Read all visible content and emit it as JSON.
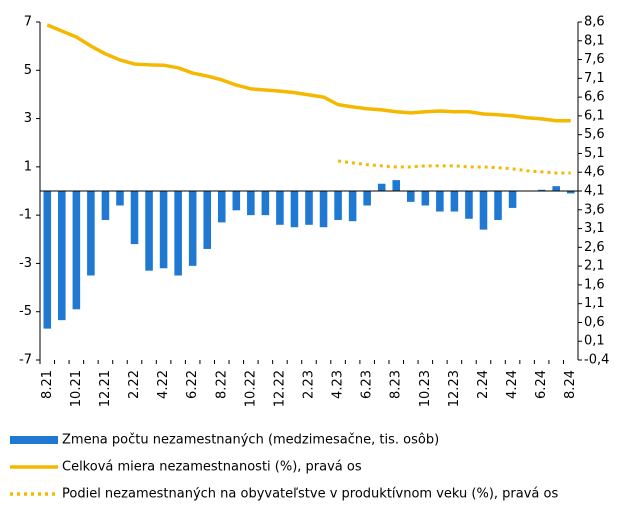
{
  "chart_data": {
    "type": "bar-line",
    "categories": [
      "8.21",
      null,
      "10.21",
      null,
      "12.21",
      null,
      "2.22",
      null,
      "4.22",
      null,
      "6.22",
      null,
      "8.22",
      null,
      "10.22",
      null,
      "12.22",
      null,
      "2.23",
      null,
      "4.23",
      null,
      "6.23",
      null,
      "8.23",
      null,
      "10.23",
      null,
      "12.23",
      null,
      "2.24",
      null,
      "4.24",
      null,
      "6.24",
      null,
      "8.24"
    ],
    "series": [
      {
        "name": "Zmena počtu nezamestnaných (medzimesačne, tis. osôb)",
        "type": "bar",
        "color": "#1f78d1",
        "values": [
          -5.7,
          -5.35,
          -4.9,
          -3.5,
          -1.2,
          -0.6,
          -2.2,
          -3.3,
          -3.2,
          -3.5,
          -3.1,
          -2.4,
          -1.3,
          -0.8,
          -1.0,
          -1.0,
          -1.4,
          -1.5,
          -1.4,
          -1.5,
          -1.2,
          -1.25,
          -0.6,
          0.3,
          0.45,
          -0.45,
          -0.6,
          -0.85,
          -0.85,
          -1.15,
          -1.6,
          -1.2,
          -0.7,
          -0.02,
          0.05,
          0.2,
          -0.1
        ]
      },
      {
        "name": "Celková miera nezamestnanosti (%), pravá os",
        "type": "line",
        "axis": "y2",
        "color": "#f5b800",
        "dash": "solid",
        "values": [
          8.52,
          8.36,
          8.2,
          7.96,
          7.75,
          7.59,
          7.48,
          7.46,
          7.45,
          7.38,
          7.24,
          7.16,
          7.06,
          6.92,
          6.82,
          6.79,
          6.76,
          6.72,
          6.66,
          6.6,
          6.4,
          6.34,
          6.29,
          6.26,
          6.21,
          6.18,
          6.21,
          6.23,
          6.21,
          6.21,
          6.15,
          6.13,
          6.1,
          6.05,
          6.02,
          5.97,
          5.97
        ]
      },
      {
        "name": "Podiel nezamestnaných na obyvateľstve v produktívnom veku (%), pravá os",
        "type": "line",
        "axis": "y2",
        "color": "#f5b800",
        "dash": "dotted",
        "values": [
          null,
          null,
          null,
          null,
          null,
          null,
          null,
          null,
          null,
          null,
          null,
          null,
          null,
          null,
          null,
          null,
          null,
          null,
          null,
          null,
          4.9,
          4.85,
          4.8,
          4.77,
          4.74,
          4.74,
          4.77,
          4.77,
          4.77,
          4.74,
          4.74,
          4.72,
          4.69,
          4.64,
          4.61,
          4.58,
          4.58
        ]
      }
    ],
    "ylim": [
      -7,
      7
    ],
    "yticks": [
      -7,
      -5,
      -3,
      -1,
      1,
      3,
      5,
      7
    ],
    "y2lim": [
      -0.4,
      8.6
    ],
    "y2ticks": [
      {
        "value": -0.4,
        "label": "-0,4"
      },
      {
        "value": 0.1,
        "label": "0,1"
      },
      {
        "value": 0.6,
        "label": "0,6"
      },
      {
        "value": 1.1,
        "label": "1,1"
      },
      {
        "value": 1.6,
        "label": "1,6"
      },
      {
        "value": 2.1,
        "label": "2,1"
      },
      {
        "value": 2.6,
        "label": "2,6"
      },
      {
        "value": 3.1,
        "label": "3,1"
      },
      {
        "value": 3.6,
        "label": "3,6"
      },
      {
        "value": 4.1,
        "label": "4,1"
      },
      {
        "value": 4.6,
        "label": "4,6"
      },
      {
        "value": 5.1,
        "label": "5,1"
      },
      {
        "value": 5.6,
        "label": "5,6"
      },
      {
        "value": 6.1,
        "label": "6,1"
      },
      {
        "value": 6.6,
        "label": "6,6"
      },
      {
        "value": 7.1,
        "label": "7,1"
      },
      {
        "value": 7.6,
        "label": "7,6"
      },
      {
        "value": 8.1,
        "label": "8,1"
      },
      {
        "value": 8.6,
        "label": "8,6"
      }
    ],
    "legend": "bottom"
  }
}
